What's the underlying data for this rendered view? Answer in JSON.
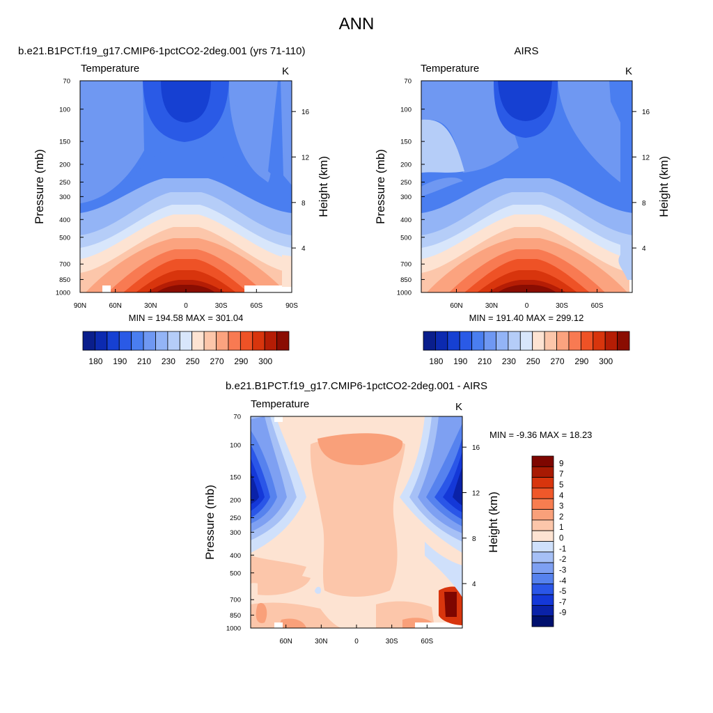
{
  "figure": {
    "title": "ANN"
  },
  "colors": {
    "scale": [
      "#0a1e8c",
      "#0c2ab0",
      "#1640d2",
      "#2a5ae6",
      "#4a7ef0",
      "#6f98f2",
      "#93b4f6",
      "#b5cdf8",
      "#d8e6fb",
      "#fde3d2",
      "#fcc6aa",
      "#fba37f",
      "#f87a52",
      "#ee5226",
      "#d8350d",
      "#b51d05",
      "#8a0d02"
    ],
    "diff_scale": [
      "#00106e",
      "#0a22a8",
      "#1438d8",
      "#2a56e8",
      "#5682ee",
      "#7ea0f2",
      "#a6c0f6",
      "#cfe0fb",
      "#fde3d2",
      "#fcc6aa",
      "#f9a07a",
      "#f77d50",
      "#f0582a",
      "#d8350d",
      "#a81a03",
      "#7e0600"
    ]
  },
  "chart_data": [
    {
      "type": "heatmap",
      "id": "model",
      "title": "b.e21.B1PCT.f19_g17.CMIP6-1pctCO2-2deg.001 (yrs 71-110)",
      "variable": "Temperature",
      "units": "K",
      "ylabel": "Pressure (mb)",
      "y2label": "Height (km)",
      "pressure_ticks": [
        "70",
        "100",
        "150",
        "200",
        "250",
        "300",
        "400",
        "500",
        "700",
        "850",
        "1000"
      ],
      "height_ticks": [
        "16",
        "12",
        "8",
        "4"
      ],
      "x_ticks": [
        "90N",
        "60N",
        "30N",
        "0",
        "30S",
        "60S",
        "90S"
      ],
      "min": 194.58,
      "max": 301.04,
      "stats_text": "MIN = 194.58  MAX = 301.04",
      "colorbar_labels": [
        "180",
        "190",
        "210",
        "230",
        "250",
        "270",
        "290",
        "300"
      ]
    },
    {
      "type": "heatmap",
      "id": "obs",
      "title": "AIRS",
      "variable": "Temperature",
      "units": "K",
      "ylabel": "Pressure (mb)",
      "y2label": "Height (km)",
      "pressure_ticks": [
        "70",
        "100",
        "150",
        "200",
        "250",
        "300",
        "400",
        "500",
        "700",
        "850",
        "1000"
      ],
      "height_ticks": [
        "16",
        "12",
        "8",
        "4"
      ],
      "x_ticks": [
        "60N",
        "30N",
        "0",
        "30S",
        "60S"
      ],
      "min": 191.4,
      "max": 299.12,
      "stats_text": "MIN = 191.40  MAX = 299.12",
      "colorbar_labels": [
        "180",
        "190",
        "210",
        "230",
        "250",
        "270",
        "290",
        "300"
      ]
    },
    {
      "type": "heatmap",
      "id": "diff",
      "title": "b.e21.B1PCT.f19_g17.CMIP6-1pctCO2-2deg.001 - AIRS",
      "variable": "Temperature",
      "units": "K",
      "ylabel": "Pressure (mb)",
      "y2label": "Height (km)",
      "pressure_ticks": [
        "70",
        "100",
        "150",
        "200",
        "250",
        "300",
        "400",
        "500",
        "700",
        "850",
        "1000"
      ],
      "height_ticks": [
        "16",
        "12",
        "8",
        "4"
      ],
      "x_ticks": [
        "60N",
        "30N",
        "0",
        "30S",
        "60S"
      ],
      "min": -9.36,
      "max": 18.23,
      "stats_text": "MIN =  -9.36  MAX =  18.23",
      "colorbar_labels": [
        "9",
        "7",
        "5",
        "4",
        "3",
        "2",
        "1",
        "0",
        "-1",
        "-2",
        "-3",
        "-4",
        "-5",
        "-7",
        "-9"
      ]
    }
  ]
}
